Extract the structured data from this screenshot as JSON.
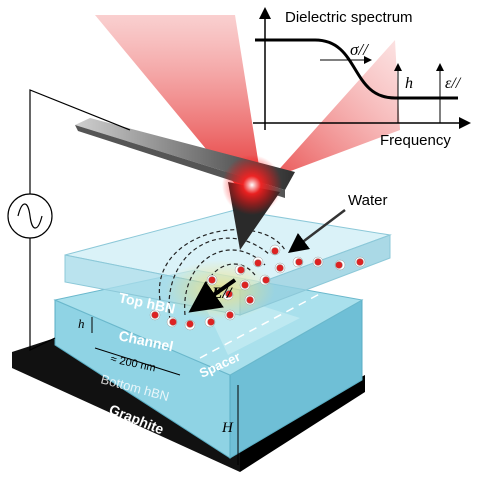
{
  "inset": {
    "title": "Dielectric spectrum",
    "sigma": "σ//",
    "h": "h",
    "epsilon": "ε//",
    "x_label": "Frequency"
  },
  "labels": {
    "water": "Water",
    "top_hbn": "Top hBN",
    "field": "E//",
    "h_small": "h",
    "channel": "Channel",
    "width": "≈ 200 nm",
    "spacer": "Spacer",
    "bottom_hbn": "Bottom hBN",
    "graphite": "Graphite",
    "H": "H"
  }
}
